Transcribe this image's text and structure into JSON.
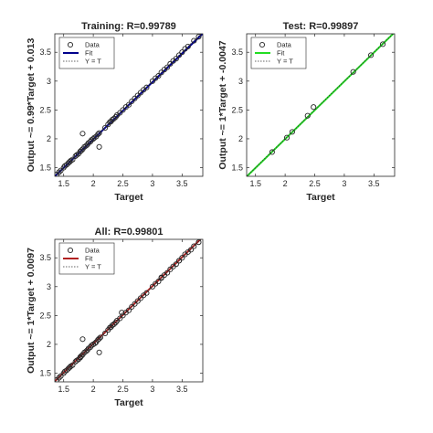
{
  "chart_data": [
    {
      "type": "scatter",
      "title": "Training: R=0.99789",
      "xlabel": "Target",
      "ylabel": "Output ~= 0.99*Target + 0.013",
      "xlim": [
        1.35,
        3.85
      ],
      "ylim": [
        1.35,
        3.82
      ],
      "xticks": [
        1.5,
        2,
        2.5,
        3,
        3.5
      ],
      "yticks": [
        1.5,
        2,
        2.5,
        3,
        3.5
      ],
      "fit": {
        "slope": 0.99,
        "intercept": 0.013,
        "color": "#00008B"
      },
      "legend": {
        "placement": "top-left",
        "entries": [
          "Data",
          "Fit",
          "Y = T"
        ]
      },
      "points": {
        "x": [
          1.38,
          1.42,
          1.45,
          1.5,
          1.52,
          1.55,
          1.58,
          1.6,
          1.62,
          1.65,
          1.7,
          1.72,
          1.75,
          1.78,
          1.8,
          1.82,
          1.85,
          1.88,
          1.9,
          1.92,
          1.95,
          1.97,
          2.0,
          2.02,
          2.05,
          2.08,
          2.1,
          2.1,
          1.82,
          2.2,
          2.25,
          2.28,
          2.3,
          2.32,
          2.35,
          2.38,
          2.4,
          2.45,
          2.5,
          2.55,
          2.6,
          2.65,
          2.7,
          2.75,
          2.8,
          2.85,
          2.9,
          3.0,
          3.05,
          3.1,
          3.15,
          3.2,
          3.25,
          3.3,
          3.35,
          3.4,
          3.45,
          3.5,
          3.55,
          3.6,
          3.7,
          3.78
        ],
        "y": [
          1.38,
          1.42,
          1.45,
          1.5,
          1.53,
          1.55,
          1.58,
          1.6,
          1.62,
          1.64,
          1.7,
          1.72,
          1.74,
          1.78,
          1.8,
          1.82,
          1.86,
          1.88,
          1.9,
          1.93,
          1.95,
          1.98,
          2.0,
          2.02,
          2.04,
          2.08,
          2.1,
          1.86,
          2.09,
          2.19,
          2.25,
          2.29,
          2.3,
          2.33,
          2.35,
          2.38,
          2.41,
          2.45,
          2.5,
          2.55,
          2.59,
          2.65,
          2.7,
          2.75,
          2.8,
          2.85,
          2.89,
          3.0,
          3.05,
          3.09,
          3.15,
          3.2,
          3.24,
          3.3,
          3.35,
          3.39,
          3.45,
          3.5,
          3.56,
          3.6,
          3.7,
          3.77
        ]
      }
    },
    {
      "type": "scatter",
      "title": "Test: R=0.99897",
      "xlabel": "Target",
      "ylabel": "Output ~= 1*Target + -0.0047",
      "xlim": [
        1.35,
        3.85
      ],
      "ylim": [
        1.35,
        3.82
      ],
      "xticks": [
        1.5,
        2,
        2.5,
        3,
        3.5
      ],
      "yticks": [
        1.5,
        2,
        2.5,
        3,
        3.5
      ],
      "fit": {
        "slope": 1.0,
        "intercept": -0.0047,
        "color": "#22DD22"
      },
      "legend": {
        "placement": "top-left",
        "entries": [
          "Data",
          "Fit",
          "Y = T"
        ]
      },
      "points": {
        "x": [
          1.78,
          2.03,
          2.12,
          2.38,
          2.48,
          3.15,
          3.45,
          3.65
        ],
        "y": [
          1.77,
          2.02,
          2.12,
          2.4,
          2.55,
          3.16,
          3.45,
          3.64
        ]
      }
    },
    {
      "type": "scatter",
      "title": "All: R=0.99801",
      "xlabel": "Target",
      "ylabel": "Output ~= 1*Target + 0.0097",
      "xlim": [
        1.35,
        3.85
      ],
      "ylim": [
        1.35,
        3.82
      ],
      "xticks": [
        1.5,
        2,
        2.5,
        3,
        3.5
      ],
      "yticks": [
        1.5,
        2,
        2.5,
        3,
        3.5
      ],
      "fit": {
        "slope": 1.0,
        "intercept": 0.0097,
        "color": "#B22222"
      },
      "legend": {
        "placement": "top-left",
        "entries": [
          "Data",
          "Fit",
          "Y = T"
        ]
      },
      "points": {
        "x": [
          1.38,
          1.42,
          1.45,
          1.5,
          1.52,
          1.55,
          1.58,
          1.6,
          1.62,
          1.65,
          1.7,
          1.72,
          1.75,
          1.78,
          1.78,
          1.8,
          1.82,
          1.85,
          1.88,
          1.9,
          1.92,
          1.95,
          1.97,
          2.0,
          2.03,
          2.05,
          2.08,
          2.1,
          2.12,
          2.1,
          1.82,
          2.2,
          2.25,
          2.28,
          2.3,
          2.32,
          2.35,
          2.38,
          2.4,
          2.45,
          2.48,
          2.5,
          2.55,
          2.6,
          2.65,
          2.7,
          2.75,
          2.8,
          2.85,
          2.9,
          3.0,
          3.05,
          3.1,
          3.15,
          3.15,
          3.2,
          3.25,
          3.3,
          3.35,
          3.4,
          3.45,
          3.45,
          3.5,
          3.55,
          3.6,
          3.65,
          3.7,
          3.78
        ],
        "y": [
          1.38,
          1.42,
          1.45,
          1.5,
          1.53,
          1.55,
          1.58,
          1.6,
          1.62,
          1.64,
          1.7,
          1.72,
          1.74,
          1.77,
          1.78,
          1.8,
          1.82,
          1.86,
          1.88,
          1.9,
          1.93,
          1.95,
          1.98,
          2.0,
          2.02,
          2.04,
          2.08,
          2.1,
          2.12,
          1.86,
          2.09,
          2.19,
          2.25,
          2.29,
          2.3,
          2.33,
          2.35,
          2.38,
          2.41,
          2.45,
          2.55,
          2.5,
          2.55,
          2.59,
          2.65,
          2.7,
          2.75,
          2.8,
          2.85,
          2.89,
          3.0,
          3.05,
          3.09,
          3.15,
          3.16,
          3.2,
          3.24,
          3.3,
          3.35,
          3.39,
          3.45,
          3.45,
          3.5,
          3.56,
          3.6,
          3.64,
          3.7,
          3.77
        ]
      }
    }
  ]
}
